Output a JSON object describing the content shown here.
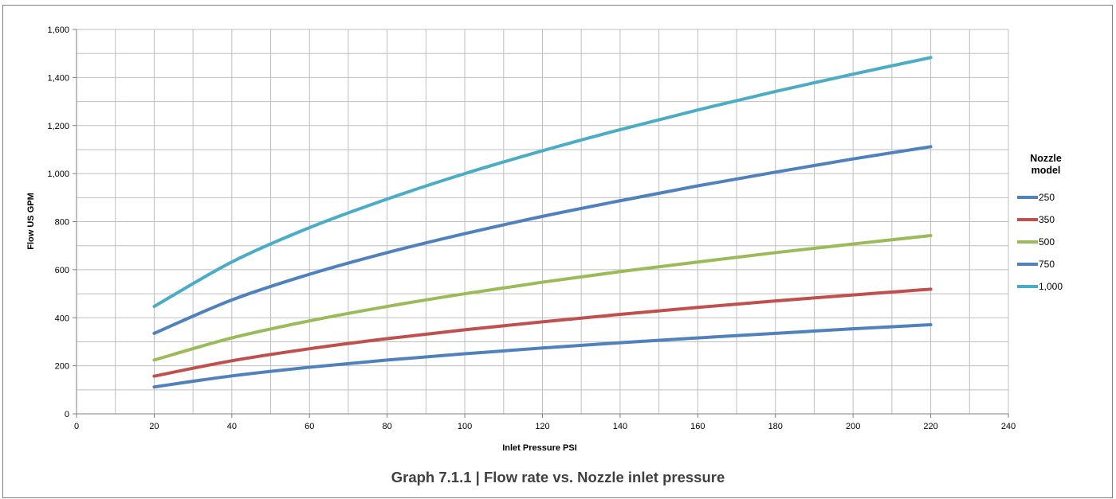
{
  "chart_data": {
    "type": "line",
    "title": "",
    "caption": "Graph 7.1.1 | Flow rate vs. Nozzle inlet pressure",
    "xlabel": "Inlet Pressure PSI",
    "ylabel": "Flow US GPM",
    "xlim": [
      0,
      240
    ],
    "ylim": [
      0,
      1600
    ],
    "xticks": [
      0,
      20,
      40,
      60,
      80,
      100,
      120,
      140,
      160,
      180,
      200,
      220,
      240
    ],
    "yticks": [
      0,
      200,
      400,
      600,
      800,
      1000,
      1200,
      1400,
      1600
    ],
    "xtick_labels": [
      "0",
      "20",
      "40",
      "60",
      "80",
      "100",
      "120",
      "140",
      "160",
      "180",
      "200",
      "220",
      "240"
    ],
    "ytick_labels": [
      "0",
      "200",
      "400",
      "600",
      "800",
      "1,000",
      "1,200",
      "1,400",
      "1,600"
    ],
    "grid": true,
    "legend_title": "Nozzle model",
    "legend_position": "right",
    "x": [
      20,
      40,
      60,
      80,
      100,
      120,
      140,
      160,
      180,
      200,
      220
    ],
    "series": [
      {
        "name": "250",
        "color": "#4f81bd",
        "values": [
          112,
          158,
          194,
          224,
          250,
          274,
          296,
          316,
          335,
          354,
          371
        ]
      },
      {
        "name": "350",
        "color": "#c0504d",
        "values": [
          157,
          221,
          271,
          313,
          350,
          383,
          414,
          443,
          470,
          495,
          519
        ]
      },
      {
        "name": "500",
        "color": "#9bbb59",
        "values": [
          224,
          316,
          387,
          447,
          500,
          548,
          592,
          632,
          671,
          707,
          742
        ]
      },
      {
        "name": "750",
        "color": "#4f81bd",
        "values": [
          335,
          474,
          581,
          671,
          750,
          822,
          887,
          949,
          1006,
          1061,
          1112
        ]
      },
      {
        "name": "1,000",
        "color": "#4bacc6",
        "values": [
          447,
          632,
          775,
          894,
          1000,
          1095,
          1183,
          1265,
          1342,
          1414,
          1483
        ]
      }
    ]
  }
}
